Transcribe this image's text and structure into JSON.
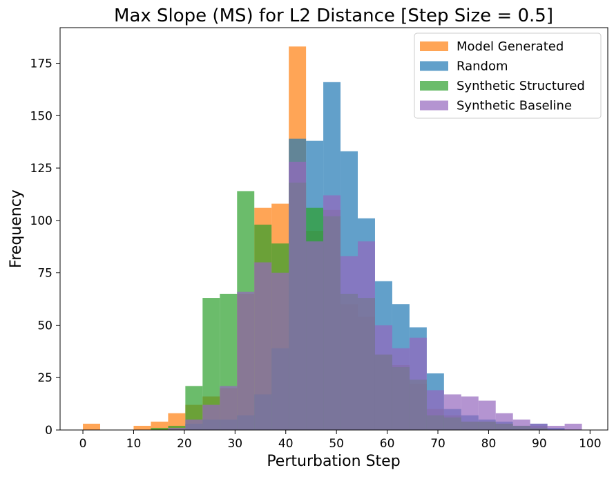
{
  "chart_data": {
    "type": "bar",
    "title": "Max Slope (MS) for L2 Distance [Step Size = 0.5]",
    "xlabel": "Perturbation Step",
    "ylabel": "Frequency",
    "xlim": [
      -4.5,
      103.5
    ],
    "ylim": [
      0,
      192
    ],
    "xticks": [
      0,
      10,
      20,
      30,
      40,
      50,
      60,
      70,
      80,
      90,
      100
    ],
    "yticks": [
      0,
      25,
      50,
      75,
      100,
      125,
      150,
      175
    ],
    "bin_width": 3.4,
    "alpha": 0.7,
    "legend_position": "top-right",
    "series": [
      {
        "name": "Model Generated",
        "color": "#ff7f0e",
        "bins": [
          [
            0,
            3
          ],
          [
            10,
            2
          ],
          [
            13.4,
            4
          ],
          [
            16.8,
            8
          ],
          [
            20.2,
            12
          ],
          [
            23.6,
            16
          ],
          [
            27,
            20
          ],
          [
            30.4,
            65
          ],
          [
            33.8,
            106
          ],
          [
            37.2,
            108
          ],
          [
            40.6,
            183
          ],
          [
            44,
            95
          ],
          [
            47.4,
            105
          ],
          [
            50.8,
            60
          ],
          [
            54.2,
            54
          ],
          [
            57.6,
            36
          ],
          [
            61,
            31
          ],
          [
            64.4,
            22
          ],
          [
            67.8,
            10
          ],
          [
            71.2,
            7
          ],
          [
            74.6,
            4
          ],
          [
            78,
            4
          ],
          [
            81.4,
            3
          ],
          [
            84.8,
            2
          ],
          [
            88.2,
            2
          ]
        ]
      },
      {
        "name": "Random",
        "color": "#1f77b4",
        "bins": [
          [
            20.2,
            3
          ],
          [
            23.6,
            5
          ],
          [
            27,
            5
          ],
          [
            30.4,
            7
          ],
          [
            33.8,
            17
          ],
          [
            37.2,
            39
          ],
          [
            40.6,
            139
          ],
          [
            44,
            138
          ],
          [
            47.4,
            166
          ],
          [
            50.8,
            133
          ],
          [
            54.2,
            101
          ],
          [
            57.6,
            71
          ],
          [
            61,
            60
          ],
          [
            64.4,
            49
          ],
          [
            67.8,
            27
          ],
          [
            71.2,
            10
          ],
          [
            74.6,
            7
          ],
          [
            78,
            5
          ],
          [
            81.4,
            4
          ],
          [
            84.8,
            2
          ],
          [
            88.2,
            3
          ],
          [
            91.6,
            1
          ]
        ]
      },
      {
        "name": "Synthetic Structured",
        "color": "#2ca02c",
        "bins": [
          [
            13.4,
            1
          ],
          [
            16.8,
            2
          ],
          [
            20.2,
            21
          ],
          [
            23.6,
            63
          ],
          [
            27,
            65
          ],
          [
            30.4,
            114
          ],
          [
            33.8,
            98
          ],
          [
            37.2,
            89
          ],
          [
            40.6,
            118
          ],
          [
            44,
            106
          ],
          [
            47.4,
            102
          ],
          [
            50.8,
            65
          ],
          [
            54.2,
            63
          ],
          [
            57.6,
            36
          ],
          [
            61,
            30
          ],
          [
            64.4,
            24
          ],
          [
            67.8,
            7
          ],
          [
            71.2,
            6
          ],
          [
            74.6,
            4
          ],
          [
            78,
            4
          ],
          [
            81.4,
            3
          ],
          [
            84.8,
            2
          ],
          [
            88.2,
            1
          ]
        ]
      },
      {
        "name": "Synthetic Baseline",
        "color": "#9467bd",
        "bins": [
          [
            16.8,
            1
          ],
          [
            20.2,
            5
          ],
          [
            23.6,
            12
          ],
          [
            27,
            21
          ],
          [
            30.4,
            66
          ],
          [
            33.8,
            80
          ],
          [
            37.2,
            75
          ],
          [
            40.6,
            128
          ],
          [
            44,
            90
          ],
          [
            47.4,
            112
          ],
          [
            50.8,
            83
          ],
          [
            54.2,
            90
          ],
          [
            57.6,
            50
          ],
          [
            61,
            39
          ],
          [
            64.4,
            44
          ],
          [
            67.8,
            19
          ],
          [
            71.2,
            17
          ],
          [
            74.6,
            16
          ],
          [
            78,
            14
          ],
          [
            81.4,
            8
          ],
          [
            84.8,
            5
          ],
          [
            88.2,
            3
          ],
          [
            91.6,
            2
          ],
          [
            95,
            3
          ]
        ]
      }
    ]
  }
}
